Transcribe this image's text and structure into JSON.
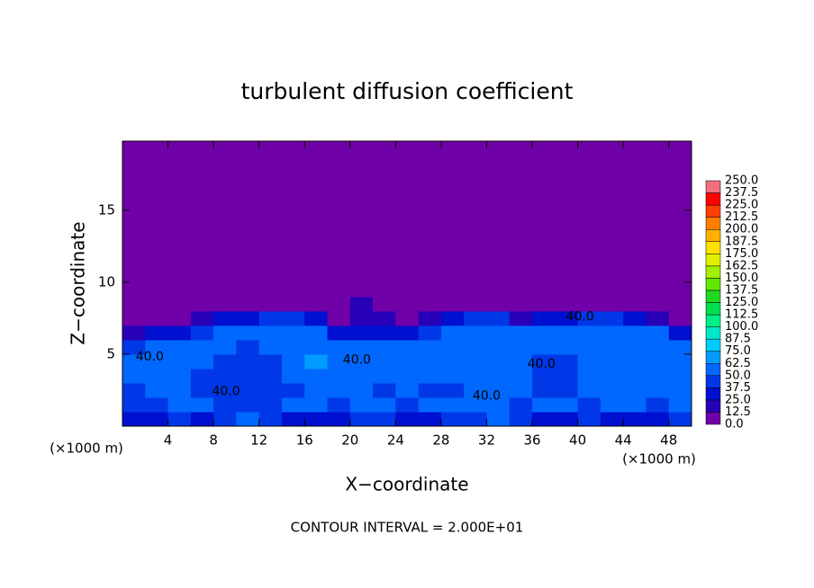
{
  "chart_data": {
    "type": "filled-contour",
    "title": "turbulent diffusion coefficient",
    "x_label": "X−coordinate",
    "y_label": "Z−coordinate",
    "x_unit": "(×1000 m)",
    "y_unit": "(×1000 m)",
    "footer": "CONTOUR INTERVAL = 2.000E+01",
    "xlim": [
      0,
      50
    ],
    "ylim": [
      0,
      19.8
    ],
    "xticks": [
      4,
      8,
      12,
      16,
      20,
      24,
      28,
      32,
      36,
      40,
      44,
      48
    ],
    "yticks": [
      5,
      10,
      15
    ],
    "x_edges": [
      0,
      2,
      4,
      6,
      8,
      10,
      12,
      14,
      16,
      18,
      20,
      22,
      24,
      26,
      28,
      30,
      32,
      34,
      36,
      38,
      40,
      42,
      44,
      46,
      48,
      50
    ],
    "z_edges": [
      0,
      1,
      2,
      3,
      4,
      5,
      6,
      7,
      8,
      9,
      20
    ],
    "z": [
      [
        30,
        30,
        40,
        35,
        45,
        55,
        40,
        30,
        35,
        30,
        45,
        40,
        30,
        35,
        40,
        45,
        55,
        40,
        35,
        30,
        40,
        35,
        30,
        30,
        40
      ],
      [
        40,
        45,
        55,
        50,
        40,
        40,
        45,
        50,
        55,
        40,
        50,
        55,
        45,
        60,
        55,
        50,
        60,
        45,
        50,
        55,
        45,
        50,
        55,
        45,
        50
      ],
      [
        45,
        50,
        60,
        45,
        40,
        38,
        40,
        45,
        60,
        55,
        55,
        45,
        50,
        45,
        45,
        55,
        60,
        50,
        40,
        40,
        50,
        55,
        50,
        55,
        50
      ],
      [
        50,
        55,
        60,
        45,
        40,
        38,
        45,
        50,
        60,
        60,
        55,
        50,
        60,
        50,
        50,
        60,
        55,
        60,
        42,
        40,
        55,
        60,
        50,
        60,
        55
      ],
      [
        55,
        60,
        55,
        50,
        42,
        40,
        45,
        55,
        65,
        55,
        60,
        55,
        60,
        55,
        55,
        60,
        55,
        60,
        45,
        42,
        55,
        60,
        50,
        55,
        55
      ],
      [
        45,
        50,
        50,
        55,
        50,
        48,
        50,
        60,
        62,
        50,
        55,
        50,
        50,
        55,
        60,
        60,
        55,
        60,
        55,
        50,
        60,
        62,
        55,
        60,
        50
      ],
      [
        20,
        25,
        30,
        45,
        55,
        55,
        55,
        55,
        55,
        30,
        25,
        30,
        30,
        40,
        55,
        55,
        55,
        50,
        55,
        55,
        55,
        55,
        55,
        50,
        30
      ],
      [
        0,
        0,
        0,
        20,
        30,
        35,
        40,
        45,
        30,
        10,
        20,
        15,
        10,
        20,
        35,
        45,
        45,
        20,
        25,
        30,
        40,
        40,
        35,
        20,
        0
      ],
      [
        0,
        0,
        0,
        0,
        0,
        0,
        0,
        0,
        0,
        0,
        15,
        10,
        0,
        0,
        0,
        0,
        0,
        0,
        0,
        0,
        0,
        10,
        0,
        0,
        0
      ],
      [
        0,
        0,
        0,
        0,
        0,
        0,
        0,
        0,
        0,
        0,
        0,
        0,
        0,
        0,
        0,
        0,
        0,
        0,
        0,
        0,
        0,
        0,
        0,
        0,
        0
      ]
    ],
    "contour_labels": [
      {
        "text": "40.0",
        "x": 20.6,
        "z": 4.6
      },
      {
        "text": "40.0",
        "x": 9.1,
        "z": 2.4
      },
      {
        "text": "40.0",
        "x": 32,
        "z": 2.1
      },
      {
        "text": "40.0",
        "x": 36.8,
        "z": 4.3
      },
      {
        "text": "40.0",
        "x": 40.2,
        "z": 7.6
      },
      {
        "text": "40.0",
        "x": 2.4,
        "z": 4.8
      }
    ],
    "colorbar": {
      "levels": [
        {
          "value": 0,
          "label": "0.0"
        },
        12.5,
        {
          "value": 25,
          "label": "25.0"
        },
        37.5,
        {
          "value": 50,
          "label": "50.0"
        },
        62.5,
        {
          "value": 75,
          "label": "75.0"
        },
        87.5,
        {
          "value": 100,
          "label": "100.0"
        },
        112.5,
        {
          "value": 125,
          "label": "125.0"
        },
        137.5,
        {
          "value": 150,
          "label": "150.0"
        },
        162.5,
        {
          "value": 175,
          "label": "175.0"
        },
        187.5,
        {
          "value": 200,
          "label": "200.0"
        },
        212.5,
        {
          "value": 225,
          "label": "225.0"
        },
        237.5,
        {
          "value": 250,
          "label": "250.0"
        }
      ],
      "colors": [
        "#7000a8",
        "#2800b8",
        "#0010d0",
        "#0038e8",
        "#0068ff",
        "#009cff",
        "#00ccff",
        "#00e8c8",
        "#00f088",
        "#00e050",
        "#20d820",
        "#60e800",
        "#a0f000",
        "#e0f000",
        "#ffe000",
        "#ffb000",
        "#ff8000",
        "#ff4000",
        "#ff0000",
        "#f07080"
      ]
    }
  }
}
